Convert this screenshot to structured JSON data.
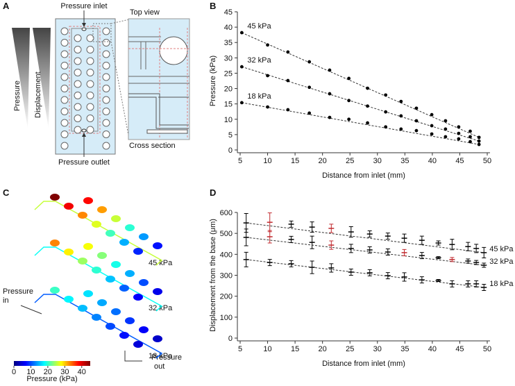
{
  "panel_labels": [
    "A",
    "B",
    "C",
    "D"
  ],
  "diagram_a": {
    "pressure_inlet": "Pressure inlet",
    "top_view": "Top view",
    "cross_section": "Cross section",
    "pressure_outlet": "Pressure outlet",
    "pressure": "Pressure",
    "displacement": "Displacement"
  },
  "diagram_c": {
    "pressure_in": [
      "Pressure",
      "in"
    ],
    "pressure_out": [
      "Pressure",
      "out"
    ],
    "chain_labels": [
      "45 kPa",
      "32 kPa",
      "18 kPa"
    ],
    "colorbar": {
      "label": "Pressure (kPa)",
      "lim": [
        0,
        45
      ],
      "ticks": [
        0,
        10,
        20,
        30,
        40
      ]
    }
  },
  "chart_data": [
    {
      "type": "scatter",
      "x_label": "Distance from inlet (mm)",
      "y_label": "Pressure (kPa)",
      "xlim": [
        5,
        50
      ],
      "xticks": [
        5,
        10,
        15,
        20,
        25,
        30,
        35,
        40,
        45,
        50
      ],
      "ylim": [
        0,
        45
      ],
      "yticks": [
        0,
        5,
        10,
        15,
        20,
        25,
        30,
        35,
        40,
        45
      ],
      "trend_line": "dashed",
      "series_label_position": "start",
      "x": [
        5.3,
        10.0,
        13.7,
        17.6,
        21.3,
        24.8,
        28.2,
        31.5,
        34.3,
        37.1,
        39.9,
        42.4,
        44.8,
        46.9,
        48.5
      ],
      "series": [
        {
          "name": "45 kPa",
          "color": "#000000",
          "values": [
            38.2,
            34.2,
            31.9,
            28.7,
            26.0,
            23.3,
            20.1,
            17.9,
            15.8,
            13.6,
            11.5,
            9.5,
            7.5,
            6.1,
            4.1
          ]
        },
        {
          "name": "32 kPa",
          "color": "#000000",
          "values": [
            27.1,
            24.2,
            22.6,
            20.4,
            18.3,
            16.1,
            14.3,
            12.4,
            11.1,
            9.5,
            7.9,
            6.8,
            5.4,
            4.3,
            2.9
          ]
        },
        {
          "name": "18 kPa",
          "color": "#000000",
          "values": [
            15.4,
            14.0,
            13.1,
            12.0,
            10.6,
            10.0,
            8.8,
            7.5,
            6.8,
            6.3,
            5.2,
            4.3,
            3.6,
            2.7,
            1.8
          ]
        }
      ]
    },
    {
      "type": "errorbar",
      "x_label": "Distance from inlet (mm)",
      "y_label": "Displacement from the base (μm)",
      "xlim": [
        5,
        50
      ],
      "xticks": [
        5,
        10,
        15,
        20,
        25,
        30,
        35,
        40,
        45,
        50
      ],
      "ylim": [
        0,
        600
      ],
      "yticks": [
        0,
        100,
        200,
        300,
        400,
        500,
        600
      ],
      "trend_line": "dashed",
      "series_label_position": "end",
      "x": [
        6.1,
        10.4,
        14.3,
        18.1,
        21.6,
        25.2,
        28.6,
        31.9,
        34.9,
        38.1,
        41.1,
        43.6,
        46.5,
        48.0,
        49.4
      ],
      "series": [
        {
          "name": "45 kPa",
          "values": [
            550,
            553,
            544,
            530,
            524,
            507,
            497,
            487,
            477,
            467,
            454,
            447,
            437,
            428,
            408
          ],
          "errors": [
            45,
            45,
            15,
            25,
            20,
            25,
            15,
            15,
            20,
            20,
            10,
            25,
            20,
            20,
            25
          ],
          "point_colors": [
            "#000000",
            "#c0282d",
            "#000000",
            "#000000",
            "#c0282d",
            "#000000",
            "#000000",
            "#000000",
            "#000000",
            "#000000",
            "#000000",
            "#000000",
            "#000000",
            "#000000",
            "#000000"
          ]
        },
        {
          "name": "32 kPa",
          "values": [
            481,
            484,
            471,
            457,
            444,
            428,
            421,
            411,
            408,
            394,
            384,
            375,
            368,
            361,
            348
          ],
          "errors": [
            40,
            30,
            15,
            30,
            20,
            20,
            15,
            15,
            15,
            15,
            5,
            10,
            10,
            10,
            10
          ],
          "point_colors": [
            "#000000",
            "#c0282d",
            "#000000",
            "#000000",
            "#c0282d",
            "#000000",
            "#000000",
            "#000000",
            "#c0282d",
            "#000000",
            "#000000",
            "#c0282d",
            "#000000",
            "#000000",
            "#000000"
          ]
        },
        {
          "name": "18 kPa",
          "values": [
            375,
            361,
            355,
            338,
            335,
            315,
            312,
            298,
            292,
            278,
            275,
            259,
            259,
            259,
            242
          ],
          "errors": [
            35,
            15,
            15,
            30,
            20,
            15,
            15,
            15,
            20,
            15,
            5,
            15,
            15,
            15,
            15
          ],
          "point_colors": [
            "#000000",
            "#000000",
            "#000000",
            "#000000",
            "#000000",
            "#000000",
            "#000000",
            "#000000",
            "#000000",
            "#000000",
            "#000000",
            "#000000",
            "#000000",
            "#000000",
            "#000000"
          ]
        }
      ]
    }
  ]
}
